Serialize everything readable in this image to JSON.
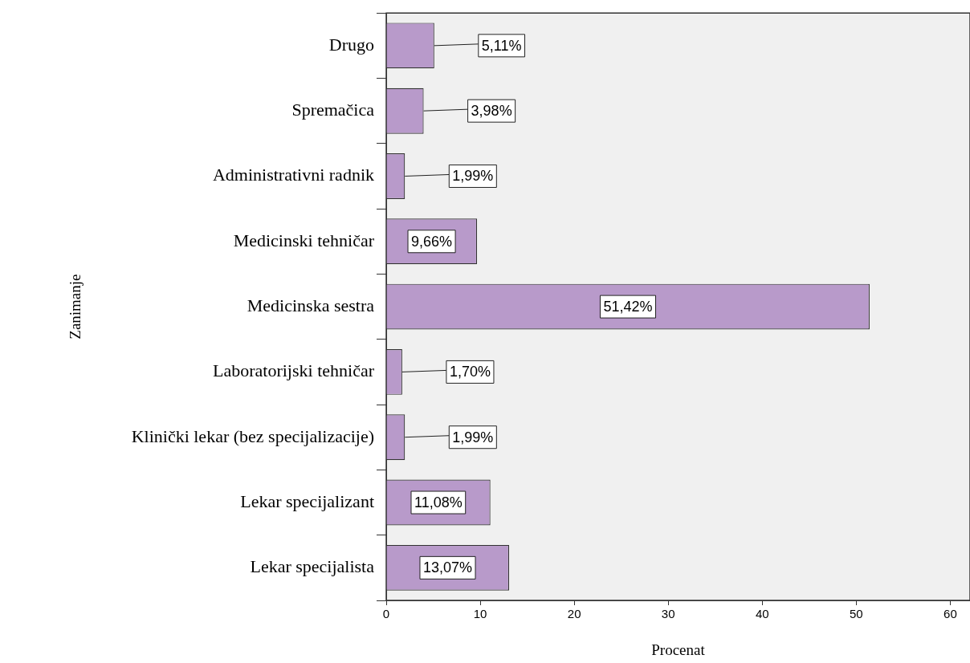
{
  "chart_data": {
    "type": "bar",
    "orientation": "horizontal",
    "xlabel": "Procenat",
    "ylabel": "Zanimanje",
    "categories": [
      "Drugo",
      "Spremačica",
      "Administrativni radnik",
      "Medicinski tehničar",
      "Medicinska sestra",
      "Laboratorijski tehničar",
      "Klinički lekar (bez specijalizacije)",
      "Lekar specijalizant",
      "Lekar specijalista"
    ],
    "values": [
      5.11,
      3.98,
      1.99,
      9.66,
      51.42,
      1.7,
      1.99,
      11.08,
      13.07
    ],
    "value_labels": [
      "5,11%",
      "3,98%",
      "1,99%",
      "9,66%",
      "51,42%",
      "1,70%",
      "1,99%",
      "11,08%",
      "13,07%"
    ],
    "color": "#b89aca",
    "xlim": [
      0,
      62.1
    ],
    "xticks": [
      0,
      10,
      20,
      30,
      40,
      50,
      60
    ],
    "grid": false,
    "legend": false
  }
}
